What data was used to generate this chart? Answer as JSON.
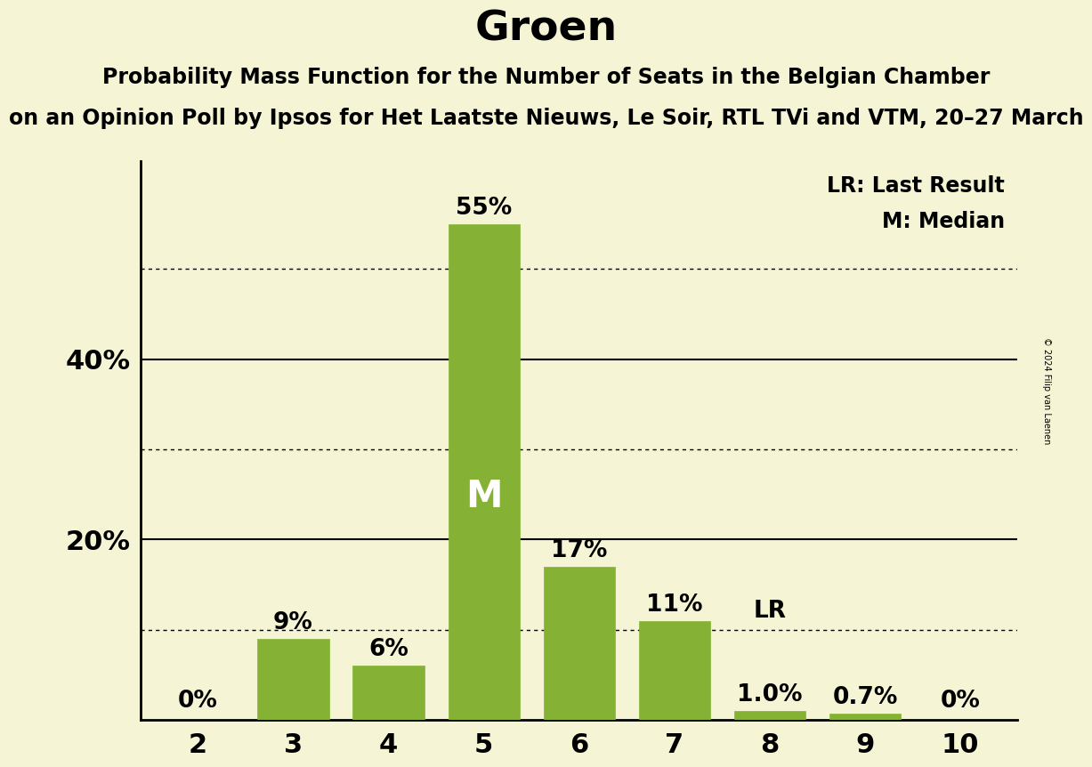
{
  "title": "Groen",
  "subtitle1": "Probability Mass Function for the Number of Seats in the Belgian Chamber",
  "subtitle2": "on an Opinion Poll by Ipsos for Het Laatste Nieuws, Le Soir, RTL TVi and VTM, 20–27 March",
  "copyright": "© 2024 Filip van Laenen",
  "categories": [
    2,
    3,
    4,
    5,
    6,
    7,
    8,
    9,
    10
  ],
  "values": [
    0.0,
    9.0,
    6.0,
    55.0,
    17.0,
    11.0,
    1.0,
    0.7,
    0.0
  ],
  "bar_color": "#85b234",
  "background_color": "#f5f5d5",
  "bar_labels": [
    "0%",
    "9%",
    "6%",
    "55%",
    "17%",
    "11%",
    "1.0%",
    "0.7%",
    "0%"
  ],
  "median_bar_index": 3,
  "median_label": "M",
  "lr_bar_index": 6,
  "lr_label": "LR",
  "legend_lr": "LR: Last Result",
  "legend_m": "M: Median",
  "solid_yticks": [
    20,
    40
  ],
  "dotted_yticks": [
    10,
    30,
    50
  ],
  "ylim": [
    0,
    62
  ],
  "title_fontsize": 34,
  "subtitle1_fontsize": 17,
  "subtitle2_fontsize": 17,
  "axis_tick_fontsize": 22,
  "bar_label_fontsize": 19,
  "legend_fontsize": 17,
  "median_fontsize": 30
}
